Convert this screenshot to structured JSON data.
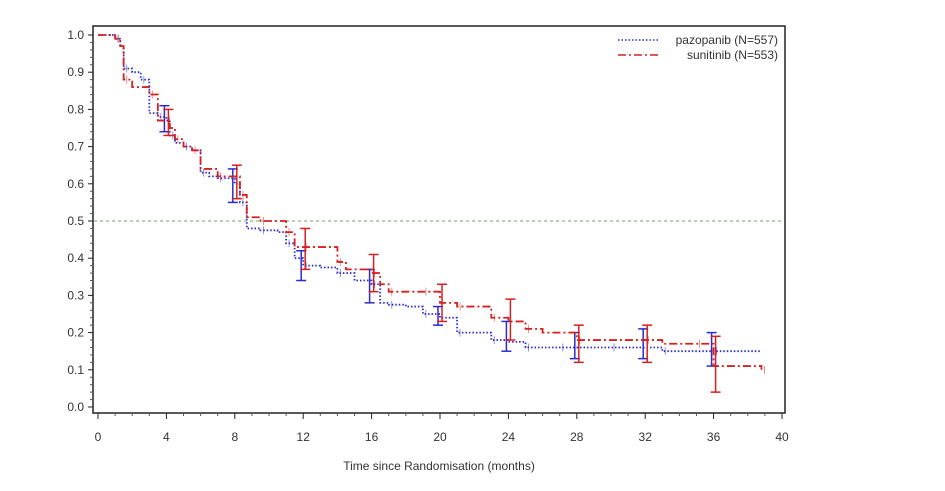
{
  "chart_data": {
    "type": "line",
    "title": "",
    "xlabel": "Time since Randomisation (months)",
    "ylabel": "",
    "xlim": [
      0,
      40
    ],
    "ylim": [
      0,
      1.0
    ],
    "x_ticks": [
      "0",
      "4",
      "8",
      "12",
      "16",
      "20",
      "24",
      "28",
      "32",
      "36",
      "40"
    ],
    "y_ticks": [
      "0.0",
      "0.1",
      "0.2",
      "0.3",
      "0.4",
      "0.5",
      "0.6",
      "0.7",
      "0.8",
      "0.9",
      "1.0"
    ],
    "reference_line": {
      "y": 0.5,
      "color": "#6aaa6a"
    },
    "legend_position": "top-right",
    "series": [
      {
        "name": "pazopanib (N=557)",
        "color": "#2b2bd0",
        "style": "dotted",
        "points": [
          [
            0,
            1.0
          ],
          [
            1,
            0.99
          ],
          [
            1.3,
            0.97
          ],
          [
            1.5,
            0.91
          ],
          [
            2,
            0.9
          ],
          [
            2.5,
            0.88
          ],
          [
            3,
            0.79
          ],
          [
            3.5,
            0.78
          ],
          [
            4,
            0.77
          ],
          [
            4.2,
            0.73
          ],
          [
            4.5,
            0.71
          ],
          [
            5,
            0.7
          ],
          [
            5.5,
            0.69
          ],
          [
            6,
            0.63
          ],
          [
            6.5,
            0.62
          ],
          [
            7,
            0.615
          ],
          [
            8,
            0.6
          ],
          [
            8.3,
            0.55
          ],
          [
            8.7,
            0.48
          ],
          [
            9.5,
            0.475
          ],
          [
            10.5,
            0.47
          ],
          [
            11,
            0.44
          ],
          [
            11.5,
            0.4
          ],
          [
            12,
            0.38
          ],
          [
            13,
            0.375
          ],
          [
            14,
            0.36
          ],
          [
            15,
            0.34
          ],
          [
            16,
            0.33
          ],
          [
            16.5,
            0.28
          ],
          [
            17,
            0.275
          ],
          [
            18,
            0.27
          ],
          [
            19,
            0.25
          ],
          [
            20,
            0.24
          ],
          [
            21,
            0.2
          ],
          [
            22,
            0.2
          ],
          [
            23,
            0.18
          ],
          [
            24,
            0.175
          ],
          [
            25,
            0.16
          ],
          [
            26,
            0.16
          ],
          [
            27,
            0.16
          ],
          [
            28,
            0.16
          ],
          [
            30,
            0.16
          ],
          [
            32,
            0.16
          ],
          [
            33,
            0.15
          ],
          [
            35,
            0.15
          ],
          [
            36,
            0.15
          ],
          [
            38.8,
            0.15
          ]
        ],
        "ci": [
          [
            4,
            0.74,
            0.81
          ],
          [
            8,
            0.55,
            0.64
          ],
          [
            12,
            0.34,
            0.42
          ],
          [
            16,
            0.28,
            0.37
          ],
          [
            20,
            0.22,
            0.27
          ],
          [
            24,
            0.15,
            0.23
          ],
          [
            28,
            0.13,
            0.2
          ],
          [
            32,
            0.13,
            0.21
          ],
          [
            36,
            0.11,
            0.2
          ]
        ]
      },
      {
        "name": "sunitinib (N=553)",
        "color": "#d62020",
        "style": "dash-dot",
        "points": [
          [
            0,
            1.0
          ],
          [
            1,
            0.99
          ],
          [
            1.3,
            0.97
          ],
          [
            1.5,
            0.88
          ],
          [
            2,
            0.86
          ],
          [
            3,
            0.84
          ],
          [
            3.5,
            0.77
          ],
          [
            4,
            0.77
          ],
          [
            4.2,
            0.75
          ],
          [
            4.5,
            0.72
          ],
          [
            5,
            0.7
          ],
          [
            5.5,
            0.69
          ],
          [
            6,
            0.64
          ],
          [
            7,
            0.62
          ],
          [
            8,
            0.62
          ],
          [
            8.3,
            0.57
          ],
          [
            8.7,
            0.51
          ],
          [
            9.5,
            0.5
          ],
          [
            10.5,
            0.5
          ],
          [
            11,
            0.47
          ],
          [
            11.5,
            0.43
          ],
          [
            12,
            0.43
          ],
          [
            13,
            0.43
          ],
          [
            14,
            0.39
          ],
          [
            14.5,
            0.37
          ],
          [
            16,
            0.36
          ],
          [
            16.5,
            0.33
          ],
          [
            17,
            0.31
          ],
          [
            18,
            0.31
          ],
          [
            19,
            0.31
          ],
          [
            20,
            0.28
          ],
          [
            21,
            0.27
          ],
          [
            22,
            0.27
          ],
          [
            23,
            0.24
          ],
          [
            24,
            0.23
          ],
          [
            25,
            0.21
          ],
          [
            26,
            0.2
          ],
          [
            28,
            0.18
          ],
          [
            30,
            0.18
          ],
          [
            32,
            0.18
          ],
          [
            33,
            0.17
          ],
          [
            35,
            0.17
          ],
          [
            36,
            0.11
          ],
          [
            38.8,
            0.1
          ]
        ],
        "ci": [
          [
            4,
            0.73,
            0.8
          ],
          [
            8,
            0.56,
            0.65
          ],
          [
            12,
            0.37,
            0.48
          ],
          [
            16,
            0.31,
            0.41
          ],
          [
            20,
            0.23,
            0.33
          ],
          [
            24,
            0.18,
            0.29
          ],
          [
            28,
            0.12,
            0.22
          ],
          [
            32,
            0.12,
            0.22
          ],
          [
            36,
            0.04,
            0.19
          ]
        ]
      }
    ]
  }
}
